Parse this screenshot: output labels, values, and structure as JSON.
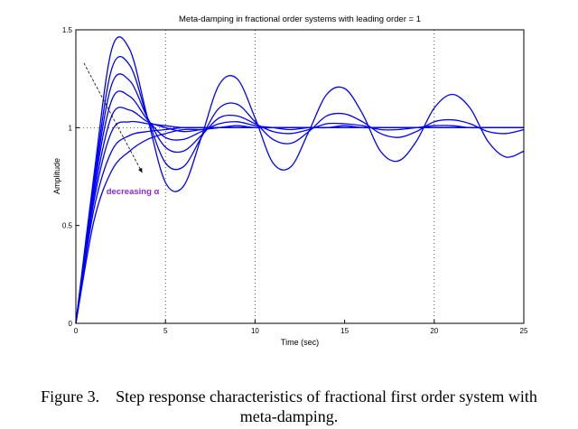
{
  "chart_data": {
    "type": "line",
    "title": "Meta-damping in fractional order systems with leading order = 1",
    "xlabel": "Time (sec)",
    "ylabel": "Amplitude",
    "xlim": [
      0,
      25
    ],
    "ylim": [
      0,
      1.5
    ],
    "xticks": [
      0,
      5,
      10,
      15,
      20,
      25
    ],
    "xtick_labels": [
      "0",
      "5",
      "10",
      "15",
      "20",
      "25"
    ],
    "yticks": [
      0,
      0.5,
      1,
      1.5
    ],
    "ytick_labels": [
      "0",
      "0.5",
      "1",
      "1.5"
    ],
    "grid": "dotted vertical lines at x = 5, 10, 20; dotted horizontal line at y = 1",
    "series_color": "#0000ff",
    "x": [
      0,
      1,
      2,
      3,
      4,
      5,
      6,
      7,
      8,
      9,
      10,
      11,
      12,
      13,
      14,
      15,
      16,
      17,
      18,
      19,
      20,
      21,
      22,
      23,
      24,
      25
    ],
    "series": [
      {
        "values": [
          0,
          0.75,
          1.4,
          1.4,
          1.05,
          0.72,
          0.7,
          0.95,
          1.22,
          1.25,
          1.05,
          0.82,
          0.8,
          0.98,
          1.17,
          1.2,
          1.07,
          0.88,
          0.83,
          0.93,
          1.1,
          1.17,
          1.1,
          0.93,
          0.85,
          0.88
        ]
      },
      {
        "values": [
          0,
          0.72,
          1.3,
          1.32,
          1.05,
          0.82,
          0.8,
          0.95,
          1.1,
          1.12,
          1.03,
          0.94,
          0.92,
          0.98,
          1.06,
          1.07,
          1.03,
          0.97,
          0.95,
          0.98,
          1.03,
          1.04,
          1.02,
          0.98,
          0.97,
          0.99
        ]
      },
      {
        "values": [
          0,
          0.7,
          1.22,
          1.24,
          1.05,
          0.9,
          0.88,
          0.96,
          1.05,
          1.06,
          1.02,
          0.98,
          0.97,
          0.99,
          1.02,
          1.02,
          1.01,
          0.99,
          0.99,
          1.0,
          1.01,
          1.01,
          1.0,
          1.0,
          1.0,
          1.0
        ]
      },
      {
        "values": [
          0,
          0.68,
          1.14,
          1.16,
          1.04,
          0.95,
          0.94,
          0.98,
          1.02,
          1.03,
          1.01,
          1.0,
          0.99,
          1.0,
          1.0,
          1.01,
          1.0,
          1.0,
          1.0,
          1.0,
          1.0,
          1.0,
          1.0,
          1.0,
          1.0,
          1.0
        ]
      },
      {
        "values": [
          0,
          0.65,
          1.06,
          1.09,
          1.03,
          1.0,
          0.98,
          0.99,
          1.0,
          1.01,
          1.0,
          1.0,
          1.0,
          1.0,
          1.0,
          1.0,
          1.0,
          1.0,
          1.0,
          1.0,
          1.0,
          1.0,
          1.0,
          1.0,
          1.0,
          1.0
        ]
      },
      {
        "values": [
          0,
          0.62,
          0.98,
          1.03,
          1.02,
          1.01,
          1.0,
          1.0,
          1.0,
          1.0,
          1.0,
          1.0,
          1.0,
          1.0,
          1.0,
          1.0,
          1.0,
          1.0,
          1.0,
          1.0,
          1.0,
          1.0,
          1.0,
          1.0,
          1.0,
          1.0
        ]
      },
      {
        "values": [
          0,
          0.58,
          0.88,
          0.96,
          0.98,
          0.99,
          1.0,
          1.0,
          1.0,
          1.0,
          1.0,
          1.0,
          1.0,
          1.0,
          1.0,
          1.0,
          1.0,
          1.0,
          1.0,
          1.0,
          1.0,
          1.0,
          1.0,
          1.0,
          1.0,
          1.0
        ]
      },
      {
        "values": [
          0,
          0.52,
          0.78,
          0.88,
          0.94,
          0.97,
          0.99,
          0.99,
          1.0,
          1.0,
          1.0,
          1.0,
          1.0,
          1.0,
          1.0,
          1.0,
          1.0,
          1.0,
          1.0,
          1.0,
          1.0,
          1.0,
          1.0,
          1.0,
          1.0,
          1.0
        ]
      }
    ],
    "annotation": {
      "text": "decreasing α",
      "color": "#8a2be2",
      "at": [
        1.7,
        0.66
      ],
      "arrow_from": [
        0.45,
        1.33
      ],
      "arrow_to": [
        3.7,
        0.77
      ]
    }
  },
  "caption": {
    "line1": "Figure 3.    Step response characteristics of fractional first order system with",
    "line2": "meta-damping."
  }
}
